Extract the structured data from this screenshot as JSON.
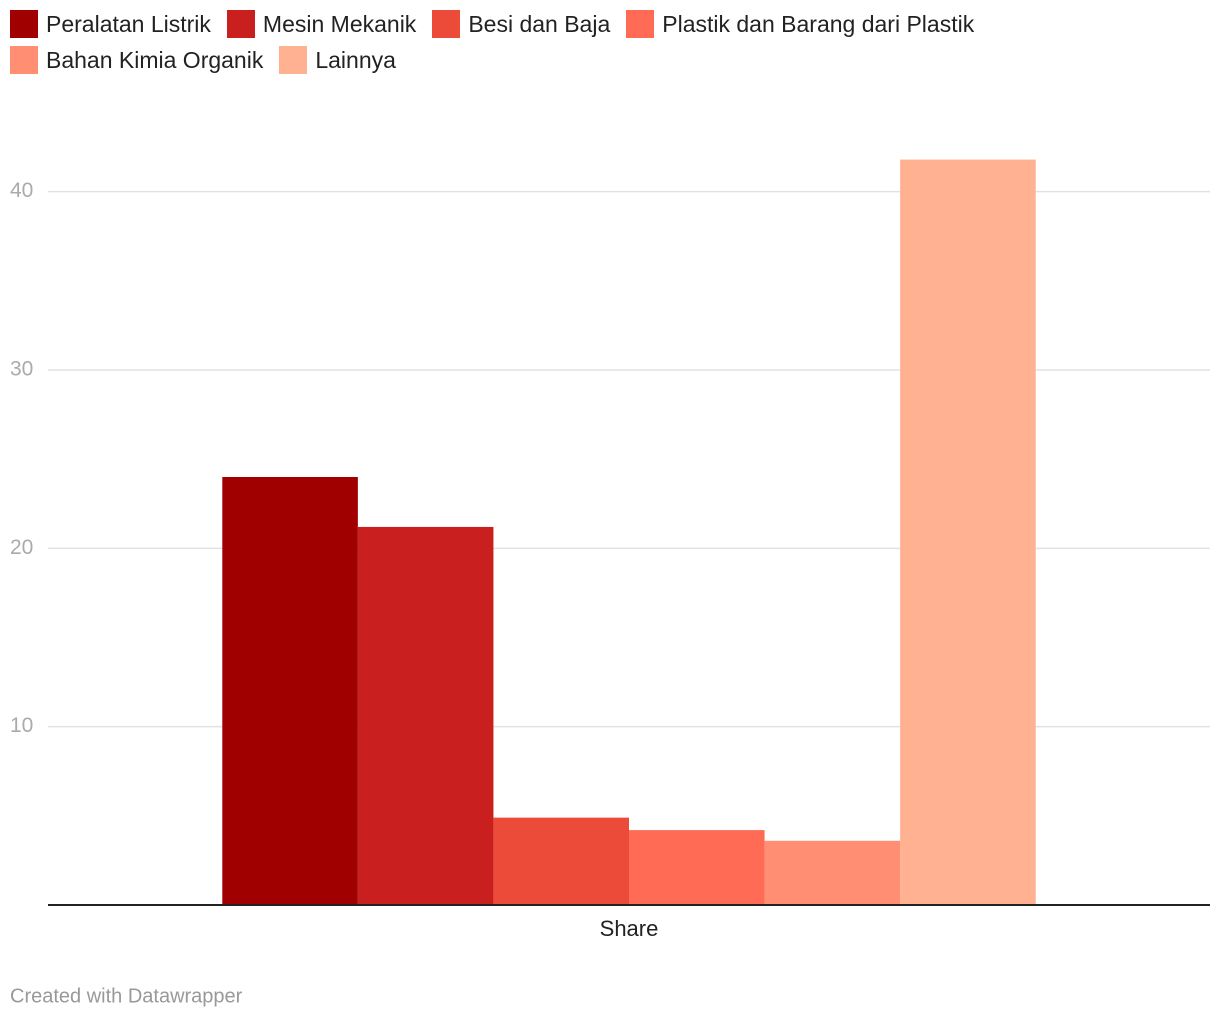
{
  "chart_data": {
    "type": "bar",
    "categories": [
      "Share"
    ],
    "series": [
      {
        "name": "Peralatan Listrik",
        "color": "#a10000",
        "values": [
          24.0
        ]
      },
      {
        "name": "Mesin Mekanik",
        "color": "#c91f1f",
        "values": [
          21.2
        ]
      },
      {
        "name": "Besi dan Baja",
        "color": "#ec4b3a",
        "values": [
          4.9
        ]
      },
      {
        "name": "Plastik dan Barang dari Plastik",
        "color": "#ff6b55",
        "values": [
          4.2
        ]
      },
      {
        "name": "Bahan Kimia Organik",
        "color": "#ff8e73",
        "values": [
          3.6
        ]
      },
      {
        "name": "Lainnya",
        "color": "#ffb192",
        "values": [
          41.8
        ]
      }
    ],
    "ylim": [
      0,
      42
    ],
    "yticks": [
      10,
      20,
      30,
      40
    ],
    "grid": true,
    "credit": "Created with Datawrapper"
  }
}
